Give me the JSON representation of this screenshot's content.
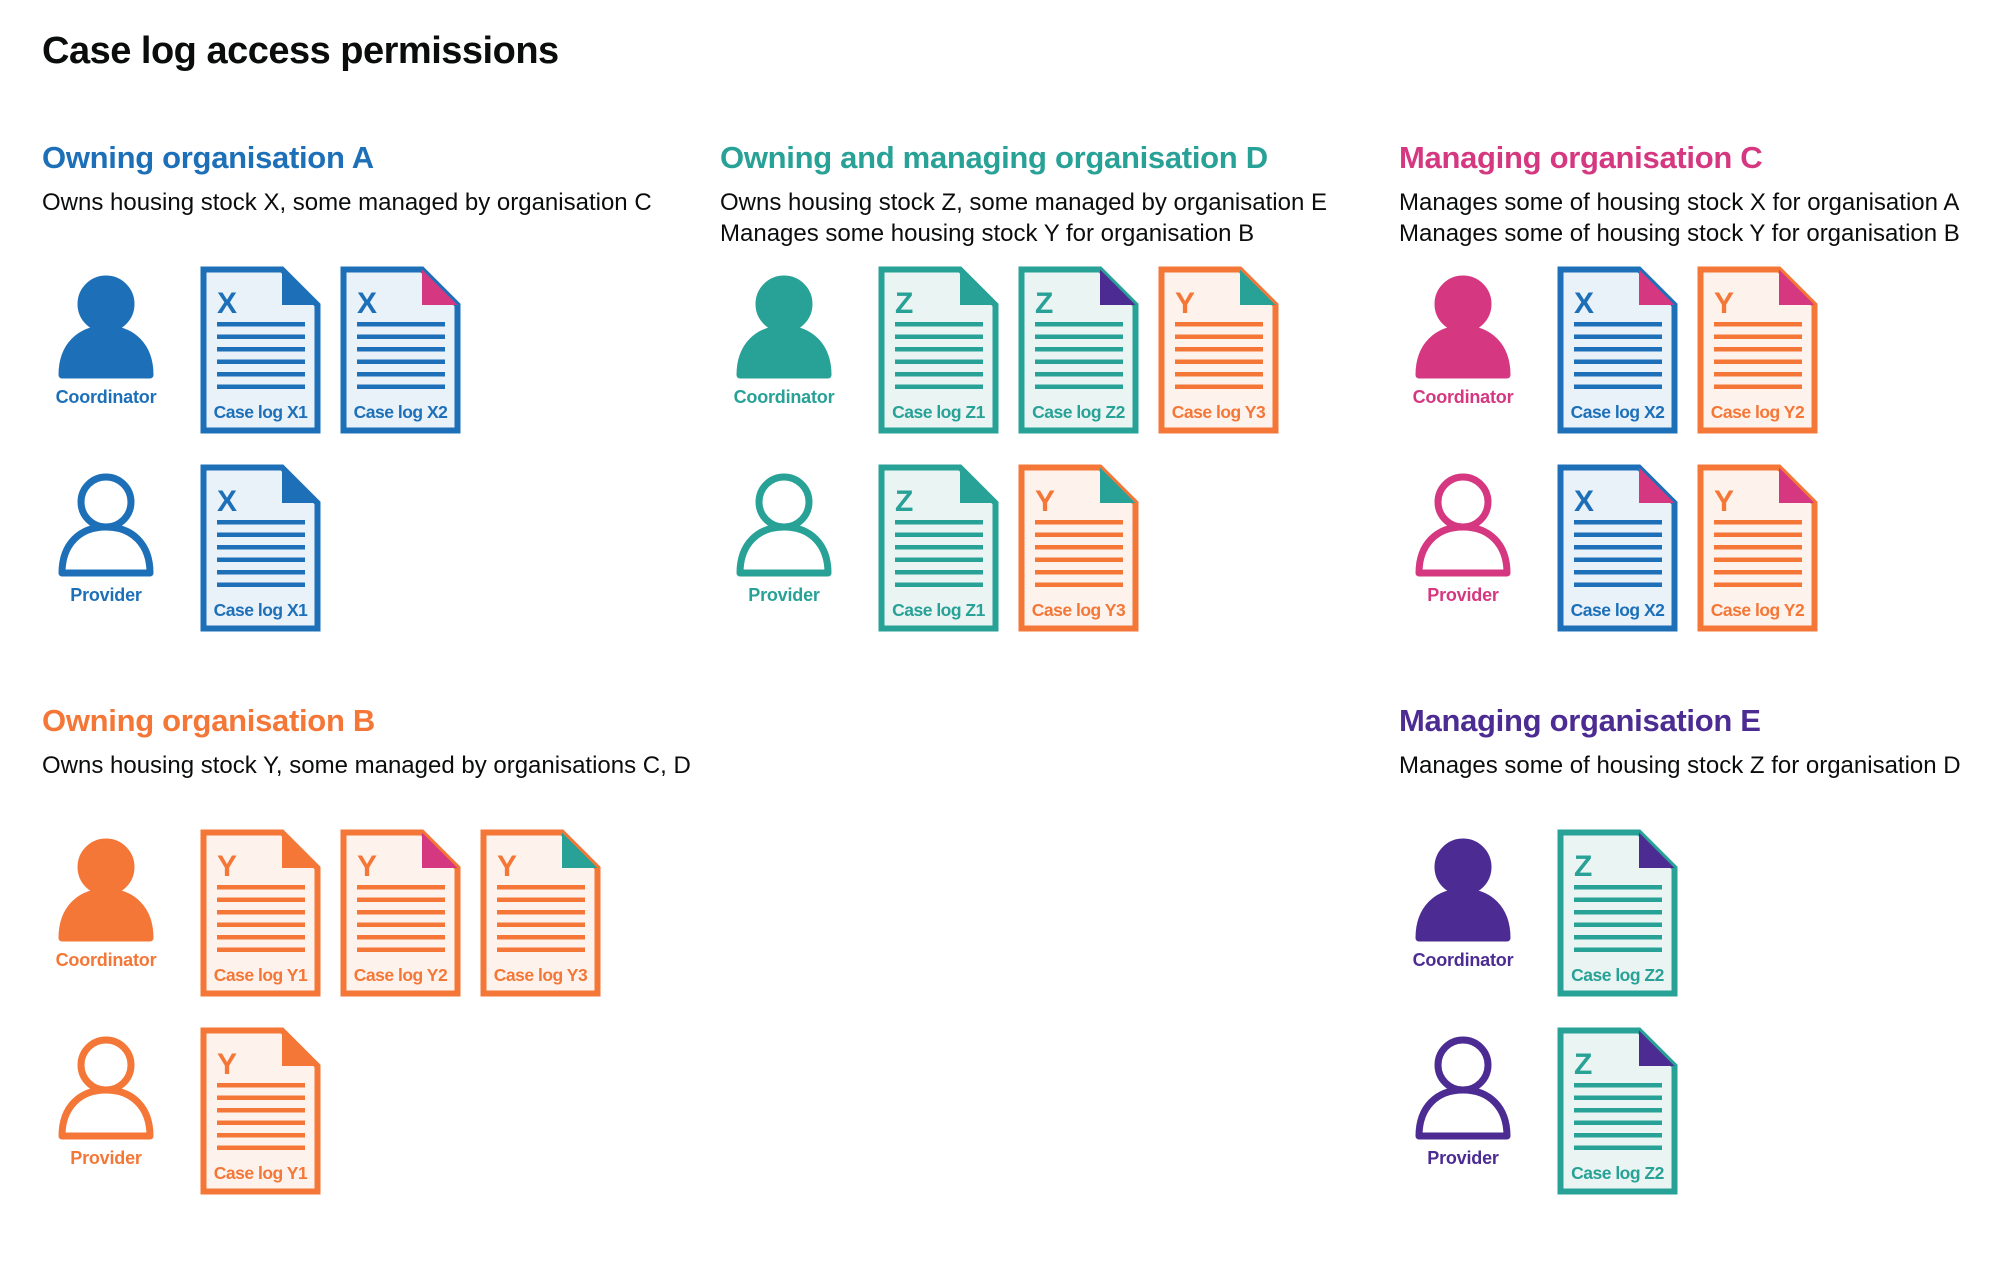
{
  "title": "Case log access permissions",
  "palette": {
    "blue": "#1d70b8",
    "teal": "#28a197",
    "orange": "#f47738",
    "pink": "#d53880",
    "purple": "#4c2c92",
    "ink": "#0b0c0c",
    "blue_tint": "#e9f1f9",
    "teal_tint": "#eaf5f3",
    "orange_tint": "#fef3ec"
  },
  "roles": {
    "coordinator": "Coordinator",
    "provider": "Provider"
  },
  "sections": [
    {
      "id": "owning-organisation-a",
      "heading": "Owning organisation A",
      "color": "blue",
      "description": [
        "Owns housing stock X, some managed by organisation C"
      ],
      "rows": [
        {
          "role": "Coordinator",
          "person_style": "filled",
          "docs": [
            {
              "letter": "X",
              "label": "Case log X1",
              "color": "blue",
              "fold": "blue"
            },
            {
              "letter": "X",
              "label": "Case log X2",
              "color": "blue",
              "fold": "pink"
            }
          ]
        },
        {
          "role": "Provider",
          "person_style": "outline",
          "docs": [
            {
              "letter": "X",
              "label": "Case log X1",
              "color": "blue",
              "fold": "blue"
            }
          ]
        }
      ]
    },
    {
      "id": "owning-and-managing-organisation-d",
      "heading": "Owning and managing organisation D",
      "color": "teal",
      "description": [
        "Owns housing stock Z, some managed by organisation E",
        "Manages some housing stock Y for organisation B"
      ],
      "rows": [
        {
          "role": "Coordinator",
          "person_style": "filled",
          "docs": [
            {
              "letter": "Z",
              "label": "Case log Z1",
              "color": "teal",
              "fold": "teal"
            },
            {
              "letter": "Z",
              "label": "Case log Z2",
              "color": "teal",
              "fold": "purple"
            },
            {
              "letter": "Y",
              "label": "Case log Y3",
              "color": "orange",
              "fold": "teal"
            }
          ]
        },
        {
          "role": "Provider",
          "person_style": "outline",
          "docs": [
            {
              "letter": "Z",
              "label": "Case log Z1",
              "color": "teal",
              "fold": "teal"
            },
            {
              "letter": "Y",
              "label": "Case log Y3",
              "color": "orange",
              "fold": "teal"
            }
          ]
        }
      ]
    },
    {
      "id": "managing-organisation-c",
      "heading": "Managing organisation C",
      "color": "pink",
      "description": [
        "Manages some of housing stock X for organisation A",
        "Manages some of housing stock Y for organisation B"
      ],
      "rows": [
        {
          "role": "Coordinator",
          "person_style": "filled",
          "docs": [
            {
              "letter": "X",
              "label": "Case log X2",
              "color": "blue",
              "fold": "pink"
            },
            {
              "letter": "Y",
              "label": "Case log Y2",
              "color": "orange",
              "fold": "pink"
            }
          ]
        },
        {
          "role": "Provider",
          "person_style": "outline",
          "docs": [
            {
              "letter": "X",
              "label": "Case log X2",
              "color": "blue",
              "fold": "pink"
            },
            {
              "letter": "Y",
              "label": "Case log Y2",
              "color": "orange",
              "fold": "pink"
            }
          ]
        }
      ]
    },
    {
      "id": "owning-organisation-b",
      "heading": "Owning organisation B",
      "color": "orange",
      "description": [
        "Owns housing stock Y, some managed by organisations C, D"
      ],
      "rows": [
        {
          "role": "Coordinator",
          "person_style": "filled",
          "docs": [
            {
              "letter": "Y",
              "label": "Case log Y1",
              "color": "orange",
              "fold": "orange"
            },
            {
              "letter": "Y",
              "label": "Case log Y2",
              "color": "orange",
              "fold": "pink"
            },
            {
              "letter": "Y",
              "label": "Case log Y3",
              "color": "orange",
              "fold": "teal"
            }
          ]
        },
        {
          "role": "Provider",
          "person_style": "outline",
          "docs": [
            {
              "letter": "Y",
              "label": "Case log Y1",
              "color": "orange",
              "fold": "orange"
            }
          ]
        }
      ]
    },
    {
      "id": "managing-organisation-e",
      "heading": "Managing organisation E",
      "color": "purple",
      "description": [
        "Manages some of housing stock Z for organisation D"
      ],
      "rows": [
        {
          "role": "Coordinator",
          "person_style": "filled",
          "docs": [
            {
              "letter": "Z",
              "label": "Case log Z2",
              "color": "teal",
              "fold": "purple"
            }
          ]
        },
        {
          "role": "Provider",
          "person_style": "outline",
          "docs": [
            {
              "letter": "Z",
              "label": "Case log Z2",
              "color": "teal",
              "fold": "purple"
            }
          ]
        }
      ]
    }
  ]
}
